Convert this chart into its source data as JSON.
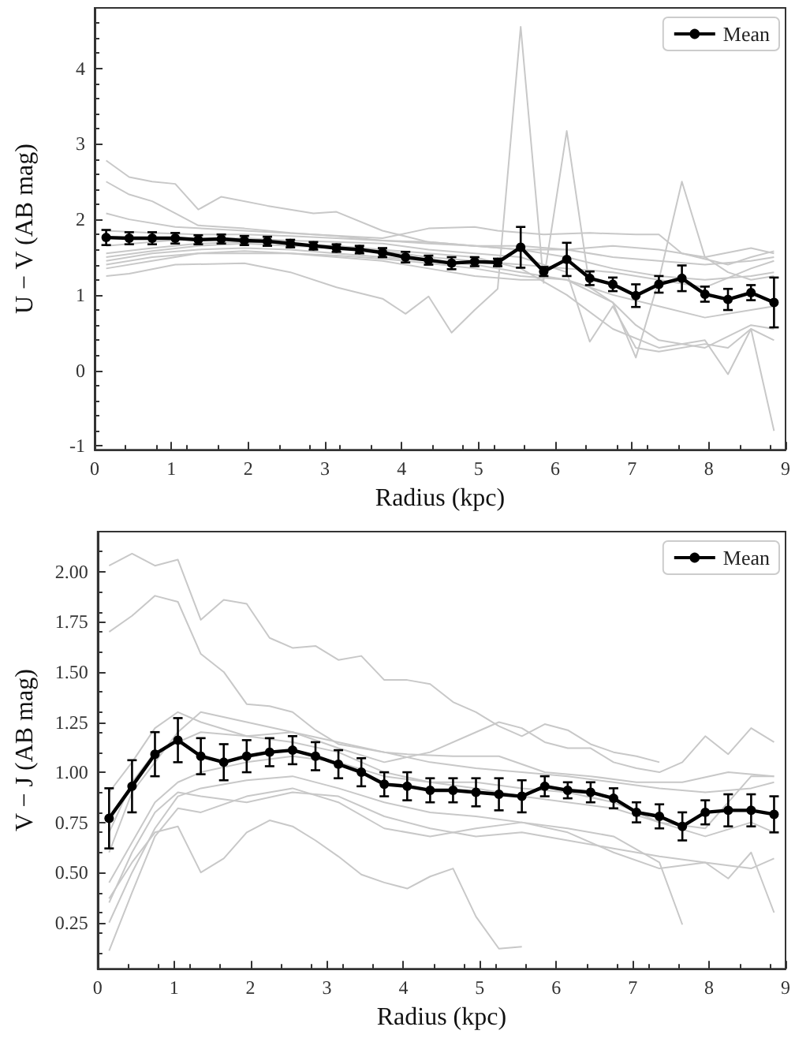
{
  "chart_data": [
    {
      "type": "line",
      "xlabel": "Radius (kpc)",
      "ylabel": "U − V (AB mag)",
      "xlim": [
        0,
        9
      ],
      "xticks": [
        0,
        1,
        2,
        3,
        4,
        5,
        6,
        7,
        8,
        9
      ],
      "ylim": [
        -1.05,
        4.8
      ],
      "yticks": [
        -1,
        0,
        1,
        2,
        3,
        4
      ],
      "grid": false,
      "legend": "top right",
      "series": [
        {
          "color": "#c8c8c8",
          "marker": "none",
          "x": [
            0.15,
            0.45,
            0.75,
            1.05,
            1.35,
            1.65,
            2.25,
            2.85,
            3.15,
            3.75,
            4.35,
            4.95,
            5.55,
            6.15,
            6.75,
            7.35,
            7.95,
            8.55,
            8.85
          ],
          "values": [
            2.78,
            2.56,
            2.5,
            2.47,
            2.13,
            2.3,
            2.18,
            2.08,
            2.1,
            1.85,
            1.7,
            1.65,
            1.6,
            1.5,
            1.35,
            1.25,
            1.2,
            1.25,
            1.3
          ]
        },
        {
          "color": "#c8c8c8",
          "marker": "none",
          "x": [
            0.15,
            0.45,
            0.75,
            1.05,
            1.35,
            1.95,
            2.55,
            3.15,
            3.75,
            4.35,
            4.95,
            5.55,
            6.15,
            6.75,
            7.35,
            7.95,
            8.55,
            8.85
          ],
          "values": [
            2.5,
            2.33,
            2.24,
            2.08,
            1.92,
            1.88,
            1.82,
            1.78,
            1.72,
            1.68,
            1.65,
            1.65,
            1.6,
            1.5,
            1.45,
            1.4,
            1.45,
            1.5
          ]
        },
        {
          "color": "#c8c8c8",
          "marker": "none",
          "x": [
            0.15,
            0.45,
            1.05,
            1.95,
            2.85,
            3.75,
            4.35,
            4.95,
            5.25,
            5.85,
            6.45,
            7.05,
            7.35,
            7.65,
            8.25,
            8.55,
            8.85
          ],
          "values": [
            2.08,
            2.0,
            1.9,
            1.85,
            1.8,
            1.75,
            1.88,
            1.9,
            1.85,
            1.8,
            1.82,
            1.8,
            1.8,
            1.55,
            1.4,
            1.5,
            1.58
          ]
        },
        {
          "color": "#c8c8c8",
          "marker": "none",
          "x": [
            0.15,
            0.45,
            1.05,
            1.95,
            2.55,
            3.15,
            3.75,
            4.05,
            4.35,
            4.65,
            4.95,
            5.25,
            5.55,
            5.85
          ],
          "values": [
            1.25,
            1.28,
            1.4,
            1.42,
            1.3,
            1.1,
            0.95,
            0.75,
            0.98,
            0.5,
            0.8,
            1.08,
            4.55,
            1.15
          ]
        },
        {
          "color": "#c8c8c8",
          "marker": "none",
          "x": [
            0.15,
            0.75,
            1.35,
            1.95,
            2.55,
            3.15,
            3.75,
            4.35,
            4.95,
            5.55,
            5.85,
            6.15,
            6.45,
            6.75,
            7.05,
            7.35,
            7.95,
            8.55,
            8.85
          ],
          "values": [
            1.35,
            1.45,
            1.55,
            1.58,
            1.55,
            1.5,
            1.45,
            1.35,
            1.25,
            1.2,
            1.2,
            3.17,
            1.1,
            0.9,
            0.6,
            0.4,
            0.3,
            0.6,
            0.55
          ]
        },
        {
          "color": "#c8c8c8",
          "marker": "none",
          "x": [
            0.15,
            0.75,
            1.35,
            1.95,
            2.55,
            3.15,
            3.75,
            4.35,
            4.95,
            5.55,
            6.15,
            6.75,
            7.05,
            7.35,
            7.65,
            7.95,
            8.25,
            8.55,
            8.85
          ],
          "values": [
            1.45,
            1.55,
            1.6,
            1.62,
            1.6,
            1.55,
            1.5,
            1.45,
            1.4,
            1.3,
            1.2,
            0.9,
            0.17,
            1.2,
            2.5,
            1.5,
            1.3,
            1.2,
            1.25
          ]
        },
        {
          "color": "#c8c8c8",
          "marker": "none",
          "x": [
            0.15,
            0.75,
            1.35,
            1.95,
            2.55,
            3.15,
            3.75,
            4.35,
            4.95,
            5.55,
            6.15,
            6.75,
            7.35,
            7.95,
            8.25,
            8.55,
            8.85
          ],
          "values": [
            1.55,
            1.62,
            1.68,
            1.7,
            1.68,
            1.65,
            1.6,
            1.55,
            1.5,
            1.35,
            1.0,
            0.55,
            0.3,
            0.4,
            -0.05,
            0.55,
            -0.8
          ]
        },
        {
          "color": "#c8c8c8",
          "marker": "none",
          "x": [
            0.15,
            0.75,
            1.35,
            1.95,
            2.55,
            3.15,
            3.75,
            4.35,
            4.95,
            5.55,
            6.15,
            6.45,
            6.75,
            7.05,
            7.35,
            7.95,
            8.25,
            8.55,
            8.85
          ],
          "values": [
            1.65,
            1.7,
            1.75,
            1.75,
            1.72,
            1.7,
            1.68,
            1.6,
            1.55,
            1.5,
            1.3,
            0.38,
            0.85,
            0.3,
            0.25,
            0.35,
            0.3,
            0.55,
            0.4
          ]
        },
        {
          "color": "#c8c8c8",
          "marker": "none",
          "x": [
            0.15,
            0.75,
            1.35,
            1.95,
            2.55,
            3.15,
            3.75,
            4.35,
            4.95,
            5.55,
            6.15,
            6.75,
            7.35,
            7.95,
            8.55,
            8.85
          ],
          "values": [
            1.85,
            1.82,
            1.8,
            1.8,
            1.78,
            1.75,
            1.72,
            1.7,
            1.65,
            1.6,
            1.6,
            1.65,
            1.6,
            1.5,
            1.62,
            1.55
          ]
        },
        {
          "color": "#c8c8c8",
          "marker": "none",
          "x": [
            0.15,
            0.75,
            1.35,
            1.95,
            2.55,
            3.15,
            3.75,
            4.35,
            4.95,
            5.55,
            6.15,
            6.75,
            7.35,
            7.95,
            8.55,
            8.85
          ],
          "values": [
            1.4,
            1.5,
            1.55,
            1.55,
            1.55,
            1.52,
            1.48,
            1.42,
            1.35,
            1.25,
            1.2,
            1.0,
            0.85,
            0.7,
            0.8,
            0.85
          ]
        },
        {
          "color": "#c8c8c8",
          "marker": "none",
          "x": [
            0.15,
            0.75,
            1.35,
            1.95,
            2.55,
            3.15,
            3.75,
            4.35,
            4.95,
            5.55,
            6.15,
            6.75,
            7.35,
            7.95,
            8.55,
            8.85
          ],
          "values": [
            1.5,
            1.58,
            1.65,
            1.68,
            1.65,
            1.62,
            1.58,
            1.5,
            1.45,
            1.4,
            1.35,
            1.3,
            1.2,
            1.1,
            1.35,
            1.45
          ]
        },
        {
          "name": "Mean",
          "color": "#000000",
          "marker": "circle",
          "x": [
            0.15,
            0.45,
            0.75,
            1.05,
            1.35,
            1.65,
            1.95,
            2.25,
            2.55,
            2.85,
            3.15,
            3.45,
            3.75,
            4.05,
            4.35,
            4.65,
            4.95,
            5.25,
            5.55,
            5.85,
            6.15,
            6.45,
            6.75,
            7.05,
            7.35,
            7.65,
            7.95,
            8.25,
            8.55,
            8.85
          ],
          "values": [
            1.76,
            1.75,
            1.75,
            1.75,
            1.73,
            1.74,
            1.72,
            1.71,
            1.68,
            1.65,
            1.62,
            1.6,
            1.56,
            1.5,
            1.46,
            1.42,
            1.44,
            1.43,
            1.63,
            1.31,
            1.47,
            1.22,
            1.14,
            0.99,
            1.14,
            1.22,
            1.01,
            0.94,
            1.03,
            0.9
          ],
          "errors": [
            0.1,
            0.08,
            0.08,
            0.07,
            0.06,
            0.06,
            0.06,
            0.06,
            0.05,
            0.05,
            0.05,
            0.05,
            0.06,
            0.07,
            0.06,
            0.08,
            0.06,
            0.05,
            0.27,
            0.06,
            0.22,
            0.09,
            0.09,
            0.15,
            0.11,
            0.17,
            0.1,
            0.14,
            0.1,
            0.33
          ]
        }
      ]
    },
    {
      "type": "line",
      "xlabel": "Radius (kpc)",
      "ylabel": "V − J (AB mag)",
      "xlim": [
        0,
        9
      ],
      "xticks": [
        0,
        1,
        2,
        3,
        4,
        5,
        6,
        7,
        8,
        9
      ],
      "ylim": [
        0.02,
        2.2
      ],
      "yticks": [
        {
          "value": 0.25,
          "label": "0.25"
        },
        {
          "value": 0.5,
          "label": "0.50"
        },
        {
          "value": 0.75,
          "label": "0.75"
        },
        {
          "value": 1,
          "label": "1.00"
        },
        {
          "value": 1.25,
          "label": "1.25"
        },
        {
          "value": 1.5,
          "label": "1.50"
        },
        {
          "value": 1.75,
          "label": "1.75"
        },
        {
          "value": 2,
          "label": "2.00"
        }
      ],
      "grid": false,
      "legend": "top right",
      "series": [
        {
          "color": "#c8c8c8",
          "marker": "none",
          "x": [
            0.15,
            0.45,
            0.75,
            1.05,
            1.35,
            1.65,
            1.95,
            2.25,
            2.55,
            2.85,
            3.15,
            3.45,
            3.75,
            4.05,
            4.35,
            4.65,
            4.95,
            5.25,
            5.55,
            5.85,
            6.15,
            6.45,
            6.75,
            7.05,
            7.35
          ],
          "values": [
            2.03,
            2.09,
            2.03,
            2.06,
            1.76,
            1.86,
            1.84,
            1.67,
            1.62,
            1.63,
            1.56,
            1.58,
            1.46,
            1.46,
            1.44,
            1.35,
            1.3,
            1.23,
            1.18,
            1.24,
            1.21,
            1.14,
            1.1,
            1.08,
            1.05
          ]
        },
        {
          "color": "#c8c8c8",
          "marker": "none",
          "x": [
            0.15,
            0.45,
            0.75,
            1.05,
            1.35,
            1.65,
            1.95,
            2.25,
            2.55,
            2.85,
            3.15,
            3.45,
            3.75,
            4.05,
            4.65,
            5.25,
            5.85,
            6.45,
            7.05,
            7.65,
            8.25,
            8.85
          ],
          "values": [
            1.7,
            1.78,
            1.88,
            1.85,
            1.59,
            1.5,
            1.34,
            1.33,
            1.3,
            1.21,
            1.14,
            1.12,
            1.1,
            1.09,
            1.08,
            1.08,
            1.0,
            0.98,
            0.95,
            0.95,
            1.0,
            0.98
          ]
        },
        {
          "color": "#c8c8c8",
          "marker": "none",
          "x": [
            0.15,
            0.45,
            0.75,
            1.05,
            1.35,
            1.95,
            2.55,
            3.15,
            3.75,
            4.35,
            4.95,
            5.25,
            5.55,
            5.85,
            6.15,
            6.45,
            6.75,
            7.05,
            7.35,
            7.65,
            7.95,
            8.25,
            8.55,
            8.85
          ],
          "values": [
            0.9,
            1.05,
            1.22,
            1.3,
            1.25,
            1.18,
            1.2,
            1.12,
            1.05,
            1.1,
            1.2,
            1.25,
            1.22,
            1.15,
            1.12,
            1.12,
            1.05,
            1.02,
            1.0,
            1.05,
            1.18,
            1.09,
            1.22,
            1.15
          ]
        },
        {
          "color": "#c8c8c8",
          "marker": "none",
          "x": [
            0.15,
            0.45,
            0.75,
            1.05,
            1.35,
            1.65,
            1.95,
            2.25,
            2.55,
            2.85,
            3.15,
            3.45,
            3.75,
            4.05,
            4.35,
            4.65,
            4.95,
            5.25,
            5.55
          ],
          "values": [
            0.37,
            0.55,
            0.7,
            0.73,
            0.5,
            0.57,
            0.7,
            0.76,
            0.73,
            0.66,
            0.58,
            0.49,
            0.45,
            0.42,
            0.48,
            0.52,
            0.28,
            0.12,
            0.13
          ]
        },
        {
          "color": "#c8c8c8",
          "marker": "none",
          "x": [
            0.15,
            0.45,
            0.75,
            1.05,
            1.35,
            1.95,
            2.55,
            3.15,
            3.75,
            4.35,
            4.95,
            5.55,
            6.15,
            6.75,
            7.35,
            7.65
          ],
          "values": [
            0.11,
            0.4,
            0.68,
            0.82,
            0.8,
            0.88,
            0.92,
            0.85,
            0.72,
            0.68,
            0.72,
            0.75,
            0.72,
            0.68,
            0.55,
            0.24
          ]
        },
        {
          "color": "#c8c8c8",
          "marker": "none",
          "x": [
            0.15,
            0.45,
            0.75,
            1.05,
            1.35,
            1.95,
            2.55,
            3.15,
            3.75,
            4.35,
            4.95,
            5.55,
            6.15,
            6.75,
            7.35,
            7.95,
            8.25,
            8.55,
            8.85
          ],
          "values": [
            0.25,
            0.5,
            0.72,
            0.88,
            0.92,
            0.96,
            0.98,
            0.92,
            0.85,
            0.8,
            0.78,
            0.75,
            0.7,
            0.6,
            0.52,
            0.55,
            0.47,
            0.6,
            0.3
          ]
        },
        {
          "color": "#c8c8c8",
          "marker": "none",
          "x": [
            0.15,
            0.45,
            0.75,
            1.05,
            1.35,
            1.95,
            2.55,
            3.15,
            3.75,
            4.35,
            4.95,
            5.55,
            6.15,
            6.75,
            7.35,
            7.95,
            8.55,
            8.85
          ],
          "values": [
            0.35,
            0.6,
            0.8,
            0.9,
            0.88,
            0.85,
            0.9,
            0.88,
            0.78,
            0.72,
            0.68,
            0.7,
            0.66,
            0.62,
            0.58,
            0.55,
            0.52,
            0.57
          ]
        },
        {
          "color": "#c8c8c8",
          "marker": "none",
          "x": [
            0.15,
            0.45,
            0.75,
            1.05,
            1.35,
            1.95,
            2.55,
            3.15,
            3.75,
            4.35,
            4.95,
            5.55,
            6.15,
            6.75,
            7.35,
            7.95,
            8.55,
            8.85
          ],
          "values": [
            0.45,
            0.65,
            0.85,
            0.95,
            1.0,
            1.05,
            1.08,
            1.05,
            0.98,
            0.95,
            0.95,
            0.92,
            0.9,
            0.85,
            0.75,
            0.68,
            0.75,
            0.7
          ]
        },
        {
          "color": "#c8c8c8",
          "marker": "none",
          "x": [
            0.15,
            0.45,
            0.75,
            1.05,
            1.35,
            1.95,
            2.55,
            3.15,
            3.75,
            4.35,
            4.95,
            5.55,
            6.15,
            6.75,
            7.35,
            7.95,
            8.55,
            8.85
          ],
          "values": [
            0.6,
            0.9,
            1.05,
            1.2,
            1.3,
            1.25,
            1.2,
            1.15,
            1.1,
            1.05,
            1.02,
            1.0,
            0.98,
            0.95,
            0.92,
            0.9,
            0.92,
            0.95
          ]
        },
        {
          "color": "#c8c8c8",
          "marker": "none",
          "x": [
            0.15,
            0.45,
            0.75,
            1.05,
            1.35,
            1.95,
            2.55,
            3.15,
            3.75,
            4.35,
            4.95,
            5.55,
            6.15,
            6.75,
            7.35,
            7.95,
            8.55,
            8.85
          ],
          "values": [
            0.7,
            0.95,
            1.1,
            1.15,
            1.2,
            1.18,
            1.15,
            1.1,
            1.0,
            0.95,
            0.92,
            0.88,
            0.85,
            0.82,
            0.75,
            0.72,
            0.98,
            0.98
          ]
        },
        {
          "name": "Mean",
          "color": "#000000",
          "marker": "circle",
          "x": [
            0.15,
            0.45,
            0.75,
            1.05,
            1.35,
            1.65,
            1.95,
            2.25,
            2.55,
            2.85,
            3.15,
            3.45,
            3.75,
            4.05,
            4.35,
            4.65,
            4.95,
            5.25,
            5.55,
            5.85,
            6.15,
            6.45,
            6.75,
            7.05,
            7.35,
            7.65,
            7.95,
            8.25,
            8.55,
            8.85
          ],
          "values": [
            0.77,
            0.93,
            1.09,
            1.16,
            1.08,
            1.05,
            1.08,
            1.1,
            1.11,
            1.08,
            1.04,
            1.0,
            0.94,
            0.93,
            0.91,
            0.91,
            0.9,
            0.89,
            0.88,
            0.93,
            0.91,
            0.9,
            0.87,
            0.8,
            0.78,
            0.73,
            0.8,
            0.81,
            0.81,
            0.79
          ],
          "errors": [
            0.15,
            0.13,
            0.11,
            0.11,
            0.09,
            0.09,
            0.08,
            0.07,
            0.07,
            0.07,
            0.07,
            0.07,
            0.06,
            0.07,
            0.06,
            0.06,
            0.07,
            0.08,
            0.08,
            0.05,
            0.04,
            0.05,
            0.05,
            0.05,
            0.06,
            0.07,
            0.06,
            0.08,
            0.08,
            0.09
          ]
        }
      ]
    }
  ]
}
